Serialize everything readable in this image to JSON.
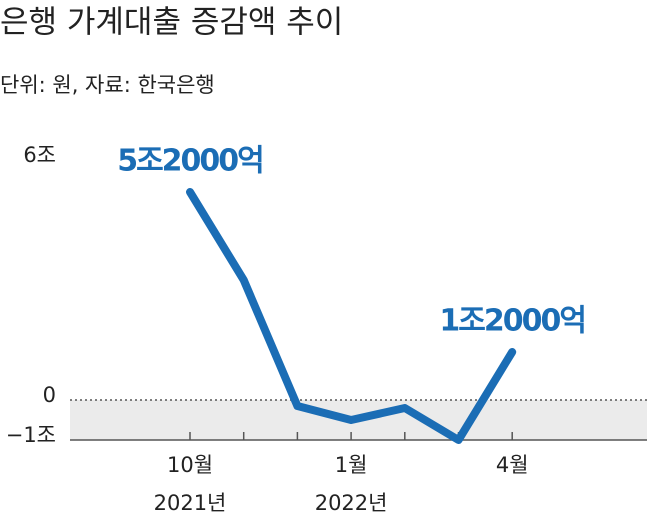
{
  "chart_data": {
    "type": "line",
    "title": "은행 가계대출 증감액 추이",
    "subtitle": "단위: 원, 자료: 한국은행",
    "categories": [
      "10월",
      null,
      null,
      "1월",
      null,
      null,
      "4월"
    ],
    "year_labels": [
      "2021년",
      null,
      null,
      "2022년",
      null,
      null,
      null
    ],
    "series": [
      {
        "name": "은행 가계대출 증감액",
        "color": "#1b6db5",
        "values": [
          5.2,
          3.0,
          -0.15,
          -0.5,
          -0.2,
          -1.0,
          1.2
        ],
        "value_labels": [
          "5조2000억",
          null,
          null,
          null,
          null,
          null,
          "1조2000억"
        ]
      }
    ],
    "ylim": [
      -1,
      6
    ],
    "yticks": [
      {
        "value": 6,
        "label": "6조"
      },
      0,
      {
        "value": -1,
        "label": "−1조"
      }
    ]
  }
}
